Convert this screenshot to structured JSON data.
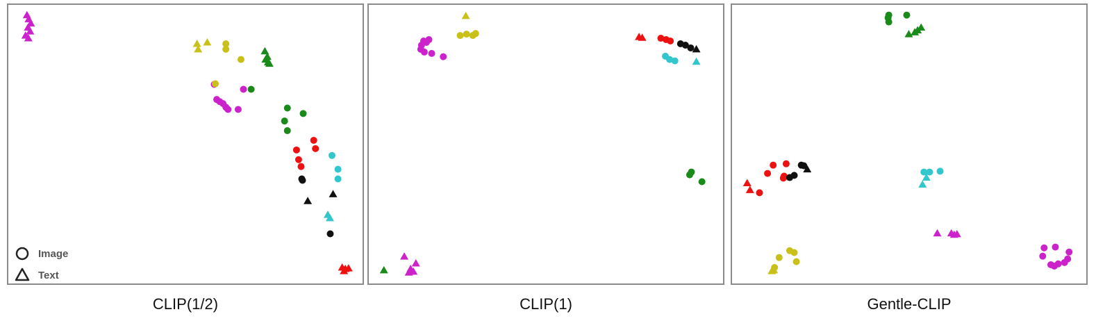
{
  "colors": {
    "magenta": "#cc22cc",
    "olive": "#c9c11a",
    "green": "#1a8a1a",
    "red": "#ee1111",
    "cyan": "#33c6cc",
    "black": "#111111"
  },
  "chart_data": [
    {
      "type": "scatter",
      "title": "CLIP(1/2)",
      "xlim": [
        0,
        100
      ],
      "ylim": [
        0,
        100
      ],
      "grid": false,
      "legend": {
        "position": "bottom-left",
        "entries": [
          {
            "marker": "circle",
            "label": "Image"
          },
          {
            "marker": "triangle",
            "label": "Text"
          }
        ]
      },
      "points": [
        {
          "x": 4.9,
          "y": 96.8,
          "color": "magenta",
          "marker": "triangle"
        },
        {
          "x": 5.4,
          "y": 95.3,
          "color": "magenta",
          "marker": "triangle"
        },
        {
          "x": 6.0,
          "y": 93.8,
          "color": "magenta",
          "marker": "triangle"
        },
        {
          "x": 5.2,
          "y": 92.3,
          "color": "magenta",
          "marker": "triangle"
        },
        {
          "x": 5.8,
          "y": 90.9,
          "color": "magenta",
          "marker": "triangle"
        },
        {
          "x": 4.5,
          "y": 89.4,
          "color": "magenta",
          "marker": "triangle"
        },
        {
          "x": 5.3,
          "y": 88.4,
          "color": "magenta",
          "marker": "triangle"
        },
        {
          "x": 53.3,
          "y": 86.4,
          "color": "olive",
          "marker": "triangle"
        },
        {
          "x": 56.2,
          "y": 86.9,
          "color": "olive",
          "marker": "triangle"
        },
        {
          "x": 53.6,
          "y": 84.4,
          "color": "olive",
          "marker": "triangle"
        },
        {
          "x": 61.5,
          "y": 86.4,
          "color": "olive",
          "marker": "circle"
        },
        {
          "x": 61.5,
          "y": 84.4,
          "color": "olive",
          "marker": "circle"
        },
        {
          "x": 65.8,
          "y": 80.7,
          "color": "olive",
          "marker": "circle"
        },
        {
          "x": 72.6,
          "y": 83.7,
          "color": "green",
          "marker": "triangle"
        },
        {
          "x": 73.3,
          "y": 81.7,
          "color": "green",
          "marker": "triangle"
        },
        {
          "x": 72.8,
          "y": 80.7,
          "color": "green",
          "marker": "triangle"
        },
        {
          "x": 73.5,
          "y": 79.7,
          "color": "green",
          "marker": "triangle"
        },
        {
          "x": 73.9,
          "y": 79.2,
          "color": "green",
          "marker": "triangle"
        },
        {
          "x": 58.2,
          "y": 71.7,
          "color": "magenta",
          "marker": "circle"
        },
        {
          "x": 58.5,
          "y": 71.9,
          "color": "olive",
          "marker": "circle"
        },
        {
          "x": 66.5,
          "y": 69.9,
          "color": "magenta",
          "marker": "circle"
        },
        {
          "x": 68.7,
          "y": 69.9,
          "color": "green",
          "marker": "circle"
        },
        {
          "x": 58.9,
          "y": 66.2,
          "color": "magenta",
          "marker": "circle"
        },
        {
          "x": 59.8,
          "y": 65.4,
          "color": "magenta",
          "marker": "circle"
        },
        {
          "x": 60.7,
          "y": 64.7,
          "color": "magenta",
          "marker": "circle"
        },
        {
          "x": 61.5,
          "y": 63.4,
          "color": "magenta",
          "marker": "circle"
        },
        {
          "x": 62.1,
          "y": 62.6,
          "color": "magenta",
          "marker": "circle"
        },
        {
          "x": 65.0,
          "y": 62.6,
          "color": "magenta",
          "marker": "circle"
        },
        {
          "x": 79.0,
          "y": 63.1,
          "color": "green",
          "marker": "circle"
        },
        {
          "x": 83.5,
          "y": 61.1,
          "color": "green",
          "marker": "circle"
        },
        {
          "x": 78.2,
          "y": 58.4,
          "color": "green",
          "marker": "circle"
        },
        {
          "x": 79.0,
          "y": 54.9,
          "color": "green",
          "marker": "circle"
        },
        {
          "x": 86.5,
          "y": 51.4,
          "color": "red",
          "marker": "circle"
        },
        {
          "x": 87.0,
          "y": 48.4,
          "color": "red",
          "marker": "circle"
        },
        {
          "x": 81.6,
          "y": 47.9,
          "color": "red",
          "marker": "circle"
        },
        {
          "x": 82.2,
          "y": 44.4,
          "color": "red",
          "marker": "circle"
        },
        {
          "x": 82.9,
          "y": 41.9,
          "color": "red",
          "marker": "circle"
        },
        {
          "x": 91.7,
          "y": 45.9,
          "color": "cyan",
          "marker": "circle"
        },
        {
          "x": 93.4,
          "y": 40.9,
          "color": "cyan",
          "marker": "circle"
        },
        {
          "x": 93.4,
          "y": 37.4,
          "color": "cyan",
          "marker": "circle"
        },
        {
          "x": 83.1,
          "y": 37.4,
          "color": "black",
          "marker": "circle"
        },
        {
          "x": 83.3,
          "y": 36.9,
          "color": "black",
          "marker": "circle"
        },
        {
          "x": 92.0,
          "y": 31.9,
          "color": "black",
          "marker": "triangle"
        },
        {
          "x": 84.8,
          "y": 29.4,
          "color": "black",
          "marker": "triangle"
        },
        {
          "x": 90.5,
          "y": 24.4,
          "color": "cyan",
          "marker": "triangle"
        },
        {
          "x": 91.1,
          "y": 23.2,
          "color": "cyan",
          "marker": "triangle"
        },
        {
          "x": 91.2,
          "y": 17.5,
          "color": "black",
          "marker": "circle"
        },
        {
          "x": 94.6,
          "y": 5.3,
          "color": "red",
          "marker": "triangle"
        },
        {
          "x": 95.5,
          "y": 4.8,
          "color": "red",
          "marker": "triangle"
        },
        {
          "x": 96.4,
          "y": 5.0,
          "color": "red",
          "marker": "triangle"
        },
        {
          "x": 95.1,
          "y": 4.0,
          "color": "red",
          "marker": "triangle"
        }
      ]
    },
    {
      "type": "scatter",
      "title": "CLIP(1)",
      "xlim": [
        0,
        100
      ],
      "ylim": [
        0,
        100
      ],
      "grid": false,
      "points": [
        {
          "x": 27.2,
          "y": 96.5,
          "color": "olive",
          "marker": "triangle"
        },
        {
          "x": 25.6,
          "y": 89.4,
          "color": "olive",
          "marker": "circle"
        },
        {
          "x": 27.4,
          "y": 89.9,
          "color": "olive",
          "marker": "circle"
        },
        {
          "x": 29.2,
          "y": 89.4,
          "color": "olive",
          "marker": "circle"
        },
        {
          "x": 30.0,
          "y": 90.1,
          "color": "olive",
          "marker": "circle"
        },
        {
          "x": 15.2,
          "y": 87.4,
          "color": "magenta",
          "marker": "circle"
        },
        {
          "x": 16.7,
          "y": 87.9,
          "color": "magenta",
          "marker": "circle"
        },
        {
          "x": 14.6,
          "y": 85.9,
          "color": "magenta",
          "marker": "circle"
        },
        {
          "x": 14.4,
          "y": 84.4,
          "color": "magenta",
          "marker": "circle"
        },
        {
          "x": 15.4,
          "y": 83.4,
          "color": "magenta",
          "marker": "circle"
        },
        {
          "x": 17.5,
          "y": 82.9,
          "color": "magenta",
          "marker": "circle"
        },
        {
          "x": 20.8,
          "y": 81.7,
          "color": "magenta",
          "marker": "circle"
        },
        {
          "x": 16.0,
          "y": 86.9,
          "color": "magenta",
          "marker": "circle"
        },
        {
          "x": 76.5,
          "y": 88.9,
          "color": "red",
          "marker": "triangle"
        },
        {
          "x": 77.4,
          "y": 88.6,
          "color": "red",
          "marker": "triangle"
        },
        {
          "x": 82.7,
          "y": 88.4,
          "color": "red",
          "marker": "circle"
        },
        {
          "x": 84.2,
          "y": 87.9,
          "color": "red",
          "marker": "circle"
        },
        {
          "x": 85.4,
          "y": 87.4,
          "color": "red",
          "marker": "circle"
        },
        {
          "x": 88.3,
          "y": 86.4,
          "color": "black",
          "marker": "circle"
        },
        {
          "x": 89.7,
          "y": 85.9,
          "color": "black",
          "marker": "circle"
        },
        {
          "x": 91.2,
          "y": 84.9,
          "color": "black",
          "marker": "circle"
        },
        {
          "x": 92.8,
          "y": 84.4,
          "color": "black",
          "marker": "triangle"
        },
        {
          "x": 84.0,
          "y": 81.9,
          "color": "cyan",
          "marker": "circle"
        },
        {
          "x": 85.2,
          "y": 80.7,
          "color": "cyan",
          "marker": "circle"
        },
        {
          "x": 86.7,
          "y": 80.2,
          "color": "cyan",
          "marker": "circle"
        },
        {
          "x": 92.8,
          "y": 79.9,
          "color": "cyan",
          "marker": "triangle"
        },
        {
          "x": 91.4,
          "y": 39.9,
          "color": "green",
          "marker": "circle"
        },
        {
          "x": 90.9,
          "y": 38.9,
          "color": "green",
          "marker": "circle"
        },
        {
          "x": 94.4,
          "y": 36.4,
          "color": "green",
          "marker": "circle"
        },
        {
          "x": 9.7,
          "y": 9.3,
          "color": "magenta",
          "marker": "triangle"
        },
        {
          "x": 13.0,
          "y": 6.8,
          "color": "magenta",
          "marker": "triangle"
        },
        {
          "x": 11.5,
          "y": 4.8,
          "color": "magenta",
          "marker": "triangle"
        },
        {
          "x": 12.3,
          "y": 3.8,
          "color": "magenta",
          "marker": "triangle"
        },
        {
          "x": 11.0,
          "y": 3.5,
          "color": "magenta",
          "marker": "triangle"
        },
        {
          "x": 3.9,
          "y": 4.3,
          "color": "green",
          "marker": "triangle"
        }
      ]
    },
    {
      "type": "scatter",
      "title": "Gentle-CLIP",
      "xlim": [
        0,
        100
      ],
      "ylim": [
        0,
        100
      ],
      "grid": false,
      "points": [
        {
          "x": 44.2,
          "y": 96.8,
          "color": "green",
          "marker": "circle"
        },
        {
          "x": 49.3,
          "y": 96.8,
          "color": "green",
          "marker": "circle"
        },
        {
          "x": 44.0,
          "y": 95.8,
          "color": "green",
          "marker": "circle"
        },
        {
          "x": 44.2,
          "y": 94.3,
          "color": "green",
          "marker": "circle"
        },
        {
          "x": 53.4,
          "y": 92.3,
          "color": "green",
          "marker": "triangle"
        },
        {
          "x": 52.4,
          "y": 91.3,
          "color": "green",
          "marker": "triangle"
        },
        {
          "x": 51.6,
          "y": 90.6,
          "color": "green",
          "marker": "triangle"
        },
        {
          "x": 49.9,
          "y": 89.9,
          "color": "green",
          "marker": "triangle"
        },
        {
          "x": 11.3,
          "y": 42.4,
          "color": "red",
          "marker": "circle"
        },
        {
          "x": 15.0,
          "y": 42.9,
          "color": "red",
          "marker": "circle"
        },
        {
          "x": 9.7,
          "y": 39.4,
          "color": "red",
          "marker": "circle"
        },
        {
          "x": 14.4,
          "y": 38.4,
          "color": "red",
          "marker": "circle"
        },
        {
          "x": 14.2,
          "y": 37.7,
          "color": "red",
          "marker": "circle"
        },
        {
          "x": 3.9,
          "y": 35.9,
          "color": "red",
          "marker": "triangle"
        },
        {
          "x": 4.7,
          "y": 33.4,
          "color": "red",
          "marker": "triangle"
        },
        {
          "x": 7.4,
          "y": 32.4,
          "color": "red",
          "marker": "circle"
        },
        {
          "x": 19.3,
          "y": 42.4,
          "color": "black",
          "marker": "circle"
        },
        {
          "x": 20.0,
          "y": 42.2,
          "color": "black",
          "marker": "circle"
        },
        {
          "x": 21.0,
          "y": 40.9,
          "color": "black",
          "marker": "triangle"
        },
        {
          "x": 17.3,
          "y": 38.7,
          "color": "black",
          "marker": "circle"
        },
        {
          "x": 16.0,
          "y": 37.9,
          "color": "black",
          "marker": "circle"
        },
        {
          "x": 54.2,
          "y": 39.9,
          "color": "cyan",
          "marker": "circle"
        },
        {
          "x": 55.8,
          "y": 39.9,
          "color": "cyan",
          "marker": "circle"
        },
        {
          "x": 58.8,
          "y": 40.2,
          "color": "cyan",
          "marker": "circle"
        },
        {
          "x": 54.9,
          "y": 37.9,
          "color": "cyan",
          "marker": "triangle"
        },
        {
          "x": 53.8,
          "y": 35.4,
          "color": "cyan",
          "marker": "triangle"
        },
        {
          "x": 58.0,
          "y": 17.7,
          "color": "magenta",
          "marker": "triangle"
        },
        {
          "x": 62.0,
          "y": 17.7,
          "color": "magenta",
          "marker": "triangle"
        },
        {
          "x": 63.6,
          "y": 17.4,
          "color": "magenta",
          "marker": "triangle"
        },
        {
          "x": 62.8,
          "y": 17.2,
          "color": "magenta",
          "marker": "triangle"
        },
        {
          "x": 88.4,
          "y": 12.4,
          "color": "magenta",
          "marker": "circle"
        },
        {
          "x": 91.6,
          "y": 12.7,
          "color": "magenta",
          "marker": "circle"
        },
        {
          "x": 95.5,
          "y": 10.9,
          "color": "magenta",
          "marker": "circle"
        },
        {
          "x": 88.0,
          "y": 9.4,
          "color": "magenta",
          "marker": "circle"
        },
        {
          "x": 95.1,
          "y": 8.4,
          "color": "magenta",
          "marker": "circle"
        },
        {
          "x": 94.2,
          "y": 7.1,
          "color": "magenta",
          "marker": "circle"
        },
        {
          "x": 92.4,
          "y": 6.6,
          "color": "magenta",
          "marker": "circle"
        },
        {
          "x": 90.3,
          "y": 6.3,
          "color": "magenta",
          "marker": "circle"
        },
        {
          "x": 91.3,
          "y": 5.8,
          "color": "magenta",
          "marker": "circle"
        },
        {
          "x": 16.0,
          "y": 11.4,
          "color": "olive",
          "marker": "circle"
        },
        {
          "x": 17.3,
          "y": 10.7,
          "color": "olive",
          "marker": "circle"
        },
        {
          "x": 13.0,
          "y": 8.9,
          "color": "olive",
          "marker": "circle"
        },
        {
          "x": 17.9,
          "y": 7.4,
          "color": "olive",
          "marker": "circle"
        },
        {
          "x": 11.7,
          "y": 5.3,
          "color": "olive",
          "marker": "circle"
        },
        {
          "x": 11.5,
          "y": 4.3,
          "color": "olive",
          "marker": "triangle"
        },
        {
          "x": 10.9,
          "y": 4.0,
          "color": "olive",
          "marker": "triangle"
        }
      ]
    }
  ]
}
